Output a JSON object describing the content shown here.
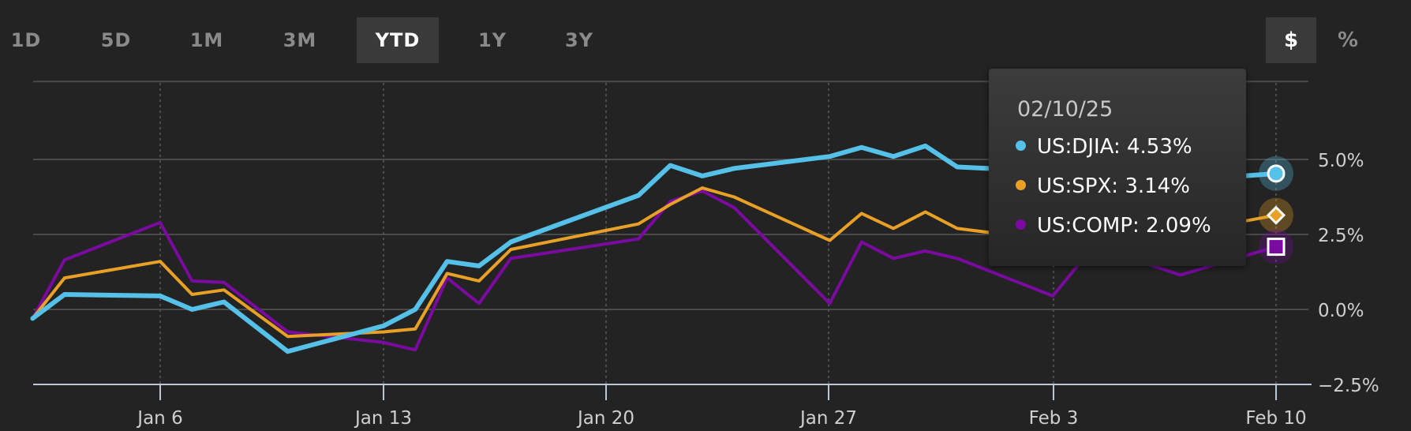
{
  "ranges": [
    "1D",
    "5D",
    "1M",
    "3M",
    "YTD",
    "1Y",
    "3Y"
  ],
  "active_range": "YTD",
  "units": [
    "$",
    "%"
  ],
  "active_unit": "$",
  "tooltip": {
    "date": "02/10/25",
    "rows": [
      {
        "label": "US:DJIA: 4.53%",
        "color": "#55c1e8"
      },
      {
        "label": "US:SPX: 3.14%",
        "color": "#e8a126"
      },
      {
        "label": "US:COMP: 2.09%",
        "color": "#7a0aa0"
      }
    ]
  },
  "chart_data": {
    "type": "line",
    "x_ticks": [
      "Jan 6",
      "Jan 13",
      "Jan 20",
      "Jan 27",
      "Feb 3",
      "Feb 10"
    ],
    "y_ticks": [
      "5.0%",
      "2.5%",
      "0.0%",
      "−2.5%"
    ],
    "ylim": [
      -2.5,
      7.6
    ],
    "ylabel": "",
    "xlabel": "",
    "grid": true,
    "series": [
      {
        "name": "US:DJIA",
        "color": "#55c1e8",
        "x": [
          "01/02/25",
          "01/03/25",
          "01/06/25",
          "01/07/25",
          "01/08/25",
          "01/10/25",
          "01/13/25",
          "01/14/25",
          "01/15/25",
          "01/16/25",
          "01/17/25",
          "01/21/25",
          "01/22/25",
          "01/23/25",
          "01/24/25",
          "01/27/25",
          "01/28/25",
          "01/29/25",
          "01/30/25",
          "01/31/25",
          "02/03/25",
          "02/04/25",
          "02/05/25",
          "02/06/25",
          "02/07/25",
          "02/10/25"
        ],
        "y": [
          -0.3,
          0.5,
          0.45,
          0.0,
          0.25,
          -1.4,
          -0.55,
          0.0,
          1.6,
          1.45,
          2.25,
          3.8,
          4.8,
          4.45,
          4.7,
          5.1,
          5.4,
          5.1,
          5.45,
          4.75,
          4.6,
          5.0,
          5.2,
          4.9,
          4.3,
          4.53
        ]
      },
      {
        "name": "US:SPX",
        "color": "#e8a126",
        "x": [
          "01/02/25",
          "01/03/25",
          "01/06/25",
          "01/07/25",
          "01/08/25",
          "01/10/25",
          "01/13/25",
          "01/14/25",
          "01/15/25",
          "01/16/25",
          "01/17/25",
          "01/21/25",
          "01/22/25",
          "01/23/25",
          "01/24/25",
          "01/27/25",
          "01/28/25",
          "01/29/25",
          "01/30/25",
          "01/31/25",
          "02/03/25",
          "02/04/25",
          "02/05/25",
          "02/06/25",
          "02/07/25",
          "02/10/25"
        ],
        "y": [
          -0.3,
          1.05,
          1.6,
          0.5,
          0.65,
          -0.9,
          -0.75,
          -0.65,
          1.2,
          0.95,
          2.0,
          2.85,
          3.5,
          4.05,
          3.75,
          2.3,
          3.2,
          2.7,
          3.25,
          2.7,
          2.3,
          2.6,
          3.0,
          3.1,
          2.55,
          3.14
        ]
      },
      {
        "name": "US:COMP",
        "color": "#7a0aa0",
        "x": [
          "01/02/25",
          "01/03/25",
          "01/06/25",
          "01/07/25",
          "01/08/25",
          "01/10/25",
          "01/13/25",
          "01/14/25",
          "01/15/25",
          "01/16/25",
          "01/17/25",
          "01/21/25",
          "01/22/25",
          "01/23/25",
          "01/24/25",
          "01/27/25",
          "01/28/25",
          "01/29/25",
          "01/30/25",
          "01/31/25",
          "02/03/25",
          "02/04/25",
          "02/05/25",
          "02/06/25",
          "02/07/25",
          "02/10/25"
        ],
        "y": [
          -0.3,
          1.65,
          2.9,
          0.95,
          0.9,
          -0.75,
          -1.1,
          -1.35,
          1.05,
          0.2,
          1.7,
          2.35,
          3.6,
          3.95,
          3.4,
          0.2,
          2.25,
          1.7,
          1.95,
          1.7,
          0.45,
          1.75,
          1.8,
          1.5,
          1.15,
          2.09
        ]
      }
    ]
  }
}
